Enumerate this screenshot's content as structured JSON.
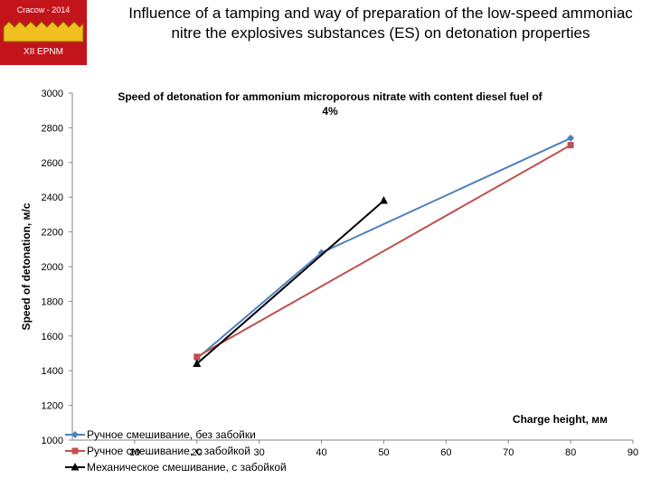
{
  "slide": {
    "logo_top_text": "Cracow - 2014",
    "logo_bottom_text": "XII EPNM",
    "title": "Influence of a tamping and way of preparation of the low-speed ammoniac nitre the explosives substances (ES) on detonation properties"
  },
  "colors": {
    "logo_background": "#c4141b",
    "logo_gear": "#f0c020",
    "series1": "#4f81bd",
    "series2": "#c0504d",
    "series3": "#000000"
  },
  "chart_data": {
    "type": "line",
    "title": "Speed of  detonation for ammonium  microporous nitrate with content diesel fuel of 4%",
    "xlabel": "Charge height, мм",
    "ylabel": "Speed of detonation, м/с",
    "xlim": [
      0,
      90
    ],
    "ylim": [
      1000,
      3000
    ],
    "xticks": [
      10,
      20,
      30,
      40,
      50,
      60,
      70,
      80,
      90
    ],
    "yticks": [
      1000,
      1200,
      1400,
      1600,
      1800,
      2000,
      2200,
      2400,
      2600,
      2800,
      3000
    ],
    "grid": false,
    "legend_position": "bottom-left",
    "series": [
      {
        "name": "Ручное смешивание, без забойки",
        "marker": "diamond",
        "x": [
          20,
          40,
          80
        ],
        "y": [
          1470,
          2080,
          2740
        ]
      },
      {
        "name": "Ручное смешивание, с забойкой",
        "marker": "square",
        "x": [
          20,
          80
        ],
        "y": [
          1480,
          2700
        ]
      },
      {
        "name": "Механическое смешивание, с забойкой",
        "marker": "triangle",
        "x": [
          20,
          50
        ],
        "y": [
          1440,
          2380
        ]
      }
    ]
  }
}
